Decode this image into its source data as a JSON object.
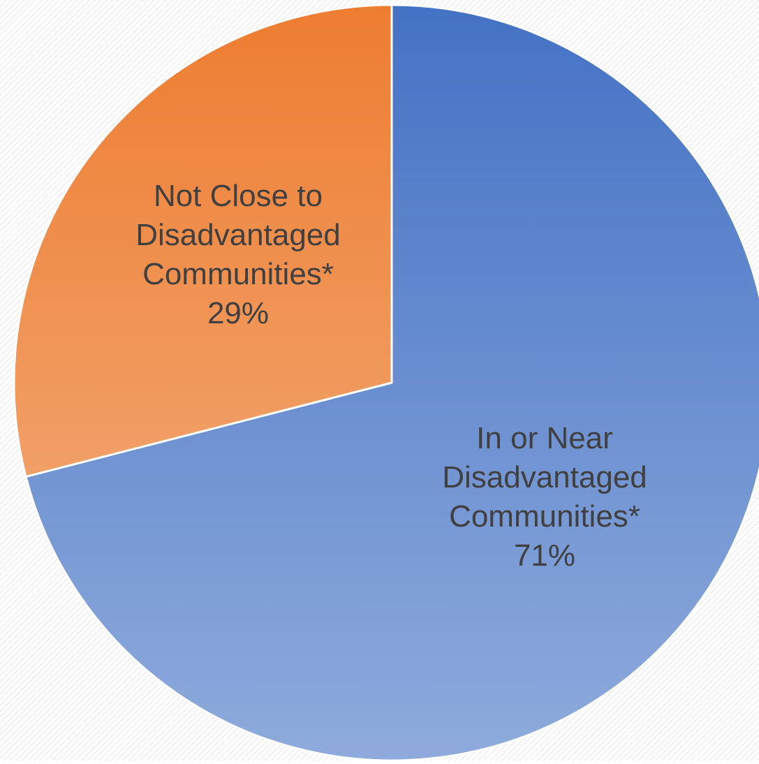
{
  "chart_data": {
    "type": "pie",
    "slices": [
      {
        "label_lines": [
          "In or Near",
          "Disadvantaged",
          "Communities*"
        ],
        "percent_label": "71%",
        "value": 71,
        "color_top": "#4472c4",
        "color_bottom": "#8fabdc"
      },
      {
        "label_lines": [
          "Not Close to",
          "Disadvantaged",
          "Communities*"
        ],
        "percent_label": "29%",
        "value": 29,
        "color_top": "#ed7d31",
        "color_bottom": "#f4b487"
      }
    ],
    "background": {
      "base_color": "#ffffff",
      "hatch_color": "#d9d9d9"
    },
    "slice_border_color": "#ffffff"
  }
}
